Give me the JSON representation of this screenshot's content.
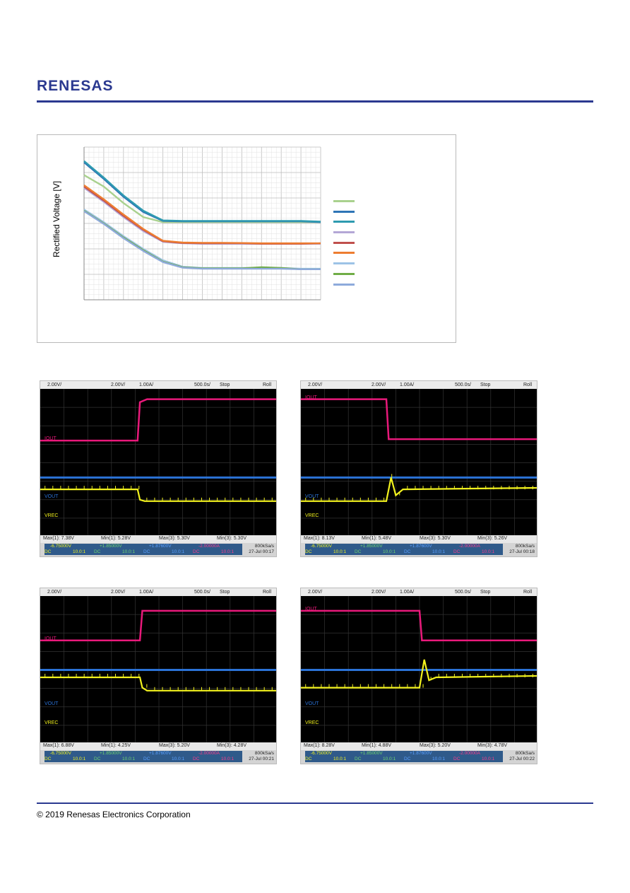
{
  "header": {
    "logo_text": "RENESAS",
    "brand_color": "#2b3990"
  },
  "chart_data": {
    "type": "line",
    "title": "",
    "xlabel": "",
    "ylabel": "Rectified Voltage [V]",
    "ylim": [
      0,
      6
    ],
    "xlim": [
      0,
      12
    ],
    "grid": true,
    "legend_placement": "right",
    "series": [
      {
        "color": "#a9d18e",
        "x": [
          0,
          1,
          2,
          3,
          4,
          5,
          6,
          7,
          8,
          9,
          10,
          11,
          12
        ],
        "y": [
          4.9,
          4.45,
          3.8,
          3.25,
          3.05,
          3.05,
          3.05,
          3.05,
          3.05,
          3.05,
          3.05,
          3.05,
          3.05
        ]
      },
      {
        "color": "#2e75b6",
        "x": [
          0,
          1,
          2,
          3,
          4,
          5,
          6,
          7,
          8,
          9,
          10,
          11,
          12
        ],
        "y": [
          5.4,
          4.75,
          4.05,
          3.45,
          3.1,
          3.08,
          3.08,
          3.08,
          3.08,
          3.08,
          3.08,
          3.08,
          3.05
        ]
      },
      {
        "color": "#2e9bb0",
        "x": [
          0,
          1,
          2,
          3,
          4,
          5,
          6,
          7,
          8,
          9,
          10,
          11,
          12
        ],
        "y": [
          5.45,
          4.8,
          4.1,
          3.5,
          3.12,
          3.1,
          3.1,
          3.1,
          3.1,
          3.1,
          3.1,
          3.1,
          3.07
        ]
      },
      {
        "color": "#b4a7d6",
        "x": [
          0,
          1,
          2,
          3,
          4,
          5,
          6,
          7,
          8,
          9,
          10,
          11,
          12
        ],
        "y": [
          4.4,
          3.85,
          3.25,
          2.7,
          2.28,
          2.22,
          2.2,
          2.2,
          2.2,
          2.2,
          2.2,
          2.2,
          2.2
        ]
      },
      {
        "color": "#c0504d",
        "x": [
          0,
          1,
          2,
          3,
          4,
          5,
          6,
          7,
          8,
          9,
          10,
          11,
          12
        ],
        "y": [
          4.45,
          3.9,
          3.3,
          2.75,
          2.3,
          2.23,
          2.22,
          2.22,
          2.22,
          2.2,
          2.2,
          2.2,
          2.22
        ]
      },
      {
        "color": "#ed7d31",
        "x": [
          0,
          1,
          2,
          3,
          4,
          5,
          6,
          7,
          8,
          9,
          10,
          11,
          12
        ],
        "y": [
          4.5,
          3.95,
          3.35,
          2.78,
          2.32,
          2.25,
          2.24,
          2.24,
          2.23,
          2.22,
          2.22,
          2.22,
          2.22
        ]
      },
      {
        "color": "#9dc3e6",
        "x": [
          0,
          1,
          2,
          3,
          4,
          5,
          6,
          7,
          8,
          9,
          10,
          11,
          12
        ],
        "y": [
          3.55,
          3.05,
          2.5,
          2.0,
          1.55,
          1.3,
          1.25,
          1.25,
          1.25,
          1.25,
          1.25,
          1.22,
          1.22
        ]
      },
      {
        "color": "#70ad47",
        "x": [
          0,
          1,
          2,
          3,
          4,
          5,
          6,
          7,
          8,
          9,
          10,
          11,
          12
        ],
        "y": [
          3.5,
          3.0,
          2.45,
          1.95,
          1.5,
          1.28,
          1.24,
          1.24,
          1.24,
          1.28,
          1.25,
          1.2,
          1.2
        ]
      },
      {
        "color": "#8eaadb",
        "x": [
          0,
          1,
          2,
          3,
          4,
          5,
          6,
          7,
          8,
          9,
          10,
          11,
          12
        ],
        "y": [
          3.48,
          2.98,
          2.42,
          1.92,
          1.48,
          1.26,
          1.22,
          1.22,
          1.22,
          1.22,
          1.22,
          1.2,
          1.2
        ]
      }
    ]
  },
  "scopes": [
    {
      "header": {
        "ch1": "2.00V/",
        "ch3": "2.00V/",
        "ch4": "1.00A/",
        "timebase": "500.0s/",
        "run": "Stop",
        "mode": "Roll"
      },
      "labels": {
        "iout": "IOUT",
        "vout": "VOUT",
        "vrec": "VREC"
      },
      "meas": [
        "Max(1): 7.38V",
        "Min(1): 5.28V",
        "Max(3): 5.30V",
        "Min(3): 5.30V"
      ],
      "cells": [
        {
          "a": "-6.75000V",
          "b": "DC",
          "c": "10.0:1"
        },
        {
          "a": "+1.85000V",
          "b": "DC",
          "c": "10.0:1"
        },
        {
          "a": "+1.87600V",
          "b": "DC",
          "c": "10.0:1"
        },
        {
          "a": "-2.00000A",
          "b": "DC",
          "c": "10.0:1"
        }
      ],
      "sample": "800kSa/s",
      "stamp": "27-Jul 00:17",
      "traces": {
        "iout": [
          [
            0,
            0.35
          ],
          [
            0.41,
            0.35
          ],
          [
            0.42,
            0.09
          ],
          [
            0.45,
            0.07
          ],
          [
            1,
            0.07
          ]
        ],
        "vout": 0.6,
        "vrec": [
          [
            0,
            0.68
          ],
          [
            0.41,
            0.68
          ],
          [
            0.42,
            0.75
          ],
          [
            0.44,
            0.76
          ],
          [
            1,
            0.76
          ]
        ]
      }
    },
    {
      "header": {
        "ch1": "2.00V/",
        "ch3": "2.00V/",
        "ch4": "1.00A/",
        "timebase": "500.0s/",
        "run": "Stop",
        "mode": "Roll"
      },
      "labels": {
        "iout": "IOUT",
        "vout": "VOUT",
        "vrec": "VREC"
      },
      "meas": [
        "Max(1): 8.13V",
        "Min(1): 5.48V",
        "Max(3): 5.30V",
        "Min(3): 5.26V"
      ],
      "cells": [
        {
          "a": "-6.75000V",
          "b": "DC",
          "c": "10.0:1"
        },
        {
          "a": "+1.85000V",
          "b": "DC",
          "c": "10.0:1"
        },
        {
          "a": "+1.87600V",
          "b": "DC",
          "c": "10.0:1"
        },
        {
          "a": "-2.00000A",
          "b": "DC",
          "c": "10.0:1"
        }
      ],
      "sample": "800kSa/s",
      "stamp": "27-Jul 00:18",
      "traces": {
        "iout": [
          [
            0,
            0.07
          ],
          [
            0.36,
            0.07
          ],
          [
            0.37,
            0.34
          ],
          [
            1,
            0.34
          ]
        ],
        "vout": 0.6,
        "vrec": [
          [
            0,
            0.76
          ],
          [
            0.36,
            0.76
          ],
          [
            0.38,
            0.6
          ],
          [
            0.4,
            0.72
          ],
          [
            0.43,
            0.68
          ],
          [
            1,
            0.67
          ]
        ]
      }
    },
    {
      "header": {
        "ch1": "2.00V/",
        "ch3": "2.00V/",
        "ch4": "1.00A/",
        "timebase": "500.0s/",
        "run": "Stop",
        "mode": "Roll"
      },
      "labels": {
        "iout": "IOUT",
        "vout": "VOUT",
        "vrec": "VREC"
      },
      "meas": [
        "Max(1): 6.88V",
        "Min(1): 4.25V",
        "Max(3): 5.20V",
        "Min(3): 4.28V"
      ],
      "cells": [
        {
          "a": "-6.75000V",
          "b": "DC",
          "c": "10.0:1"
        },
        {
          "a": "+1.85000V",
          "b": "DC",
          "c": "10.0:1"
        },
        {
          "a": "+1.87600V",
          "b": "DC",
          "c": "10.0:1"
        },
        {
          "a": "-2.00000A",
          "b": "DC",
          "c": "10.0:1"
        }
      ],
      "sample": "800kSa/s",
      "stamp": "27-Jul 00:21",
      "traces": {
        "iout": [
          [
            0,
            0.3
          ],
          [
            0.42,
            0.3
          ],
          [
            0.43,
            0.1
          ],
          [
            1,
            0.1
          ]
        ],
        "vout": 0.5,
        "vrec": [
          [
            0,
            0.55
          ],
          [
            0.42,
            0.55
          ],
          [
            0.43,
            0.62
          ],
          [
            0.45,
            0.64
          ],
          [
            1,
            0.64
          ]
        ]
      }
    },
    {
      "header": {
        "ch1": "2.00V/",
        "ch3": "2.00V/",
        "ch4": "1.00A/",
        "timebase": "500.0s/",
        "run": "Stop",
        "mode": "Roll"
      },
      "labels": {
        "iout": "IOUT",
        "vout": "VOUT",
        "vrec": "VREC"
      },
      "meas": [
        "Max(1): 8.28V",
        "Min(1): 4.88V",
        "Max(3): 5.20V",
        "Min(3): 4.78V"
      ],
      "cells": [
        {
          "a": "-6.75000V",
          "b": "DC",
          "c": "10.0:1"
        },
        {
          "a": "+1.85000V",
          "b": "DC",
          "c": "10.0:1"
        },
        {
          "a": "+1.87600V",
          "b": "DC",
          "c": "10.0:1"
        },
        {
          "a": "-2.00000A",
          "b": "DC",
          "c": "10.0:1"
        }
      ],
      "sample": "800kSa/s",
      "stamp": "27-Jul 00:22",
      "traces": {
        "iout": [
          [
            0,
            0.1
          ],
          [
            0.5,
            0.1
          ],
          [
            0.51,
            0.3
          ],
          [
            1,
            0.3
          ]
        ],
        "vout": 0.5,
        "vrec": [
          [
            0,
            0.62
          ],
          [
            0.5,
            0.62
          ],
          [
            0.52,
            0.43
          ],
          [
            0.54,
            0.57
          ],
          [
            0.57,
            0.55
          ],
          [
            1,
            0.54
          ]
        ]
      }
    }
  ],
  "footer": {
    "copyright": "© 2019 Renesas Electronics Corporation"
  }
}
